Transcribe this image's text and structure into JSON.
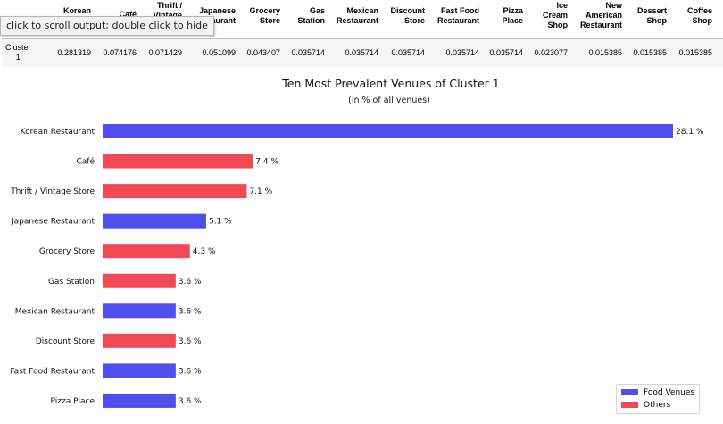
{
  "tooltip": "click to scroll output; double click to hide",
  "table": {
    "columns": [
      "Korean",
      "Café",
      "Thrift /\nVintage",
      "Japanese\nRestaurant",
      "Grocery\nStore",
      "Gas\nStation",
      "Mexican\nRestaurant",
      "Discount\nStore",
      "Fast Food\nRestaurant",
      "Pizza\nPlace",
      "Ice\nCream\nShop",
      "New\nAmerican\nRestaurant",
      "Dessert\nShop",
      "Coffee\nShop"
    ],
    "row_label": "Cluster\n1",
    "values": [
      "0.281319",
      "0.074176",
      "0.071429",
      "0.051099",
      "0.043407",
      "0.035714",
      "0.035714",
      "0.035714",
      "0.035714",
      "0.035714",
      "0.023077",
      "0.015385",
      "0.015385",
      "0.015385"
    ]
  },
  "chart_data": {
    "type": "bar",
    "orientation": "horizontal",
    "title": "Ten Most Prevalent Venues of Cluster 1",
    "subtitle": "(in % of all venues)",
    "categories": [
      "Korean Restaurant",
      "Café",
      "Thrift / Vintage Store",
      "Japanese Restaurant",
      "Grocery Store",
      "Gas Station",
      "Mexican Restaurant",
      "Discount Store",
      "Fast Food Restaurant",
      "Pizza Place"
    ],
    "values": [
      28.1,
      7.4,
      7.1,
      5.1,
      4.3,
      3.6,
      3.6,
      3.6,
      3.6,
      3.6
    ],
    "value_labels": [
      "28.1 %",
      "7.4 %",
      "7.1 %",
      "5.1 %",
      "4.3 %",
      "3.6 %",
      "3.6 %",
      "3.6 %",
      "3.6 %",
      "3.6 %"
    ],
    "groups": [
      "food",
      "other",
      "other",
      "food",
      "other",
      "other",
      "food",
      "other",
      "food",
      "food"
    ],
    "colors": {
      "food": "#4f4ff0",
      "other": "#f24a55"
    },
    "legend": [
      {
        "group": "food",
        "label": "Food Venues"
      },
      {
        "group": "other",
        "label": "Others"
      }
    ],
    "legend_position": "lower-right",
    "grid": false
  }
}
